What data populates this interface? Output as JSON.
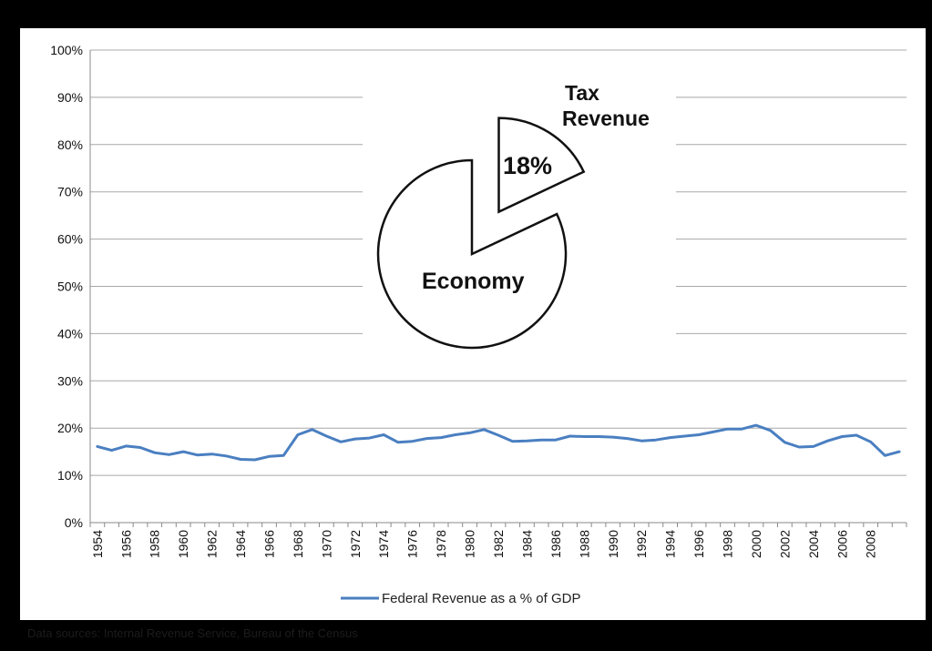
{
  "chart_data": {
    "type": "line",
    "categories": [
      "1954",
      "1955",
      "1956",
      "1957",
      "1958",
      "1959",
      "1960",
      "1961",
      "1962",
      "1963",
      "1964",
      "1965",
      "1966",
      "1967",
      "1968",
      "1969",
      "1970",
      "1971",
      "1972",
      "1973",
      "1974",
      "1975",
      "1976",
      "1977",
      "1978",
      "1979",
      "1980",
      "1981",
      "1982",
      "1983",
      "1984",
      "1985",
      "1986",
      "1987",
      "1988",
      "1989",
      "1990",
      "1991",
      "1992",
      "1993",
      "1994",
      "1995",
      "1996",
      "1997",
      "1998",
      "1999",
      "2000",
      "2001",
      "2002",
      "2003",
      "2004",
      "2005",
      "2006",
      "2007",
      "2008",
      "2009",
      "2010"
    ],
    "tick_labels": [
      "1954",
      "1956",
      "1958",
      "1960",
      "1962",
      "1964",
      "1966",
      "1968",
      "1970",
      "1972",
      "1974",
      "1976",
      "1978",
      "1980",
      "1982",
      "1984",
      "1986",
      "1988",
      "1990",
      "1992",
      "1994",
      "1996",
      "1998",
      "2000",
      "2002",
      "2004",
      "2006",
      "2008"
    ],
    "series": [
      {
        "name": "Federal Revenue as a % of GDP",
        "color": "#4a7fc1",
        "values": [
          16.1,
          15.3,
          16.2,
          15.9,
          14.8,
          14.4,
          15.0,
          14.3,
          14.5,
          14.1,
          13.4,
          13.3,
          14.0,
          14.2,
          18.6,
          19.7,
          18.3,
          17.1,
          17.7,
          17.9,
          18.6,
          17.0,
          17.2,
          17.8,
          18.0,
          18.6,
          19.0,
          19.7,
          18.5,
          17.2,
          17.3,
          17.5,
          17.5,
          18.3,
          18.2,
          18.2,
          18.1,
          17.8,
          17.3,
          17.5,
          18.0,
          18.3,
          18.6,
          19.2,
          19.8,
          19.8,
          20.6,
          19.5,
          17.0,
          16.0,
          16.1,
          17.3,
          18.2,
          18.5,
          17.1,
          14.2,
          15.0
        ]
      }
    ],
    "ylim": [
      0,
      100
    ],
    "yticks": [
      0,
      10,
      20,
      30,
      40,
      50,
      60,
      70,
      80,
      90,
      100
    ],
    "y_tick_format": "%",
    "grid": true,
    "legend_position": "bottom",
    "inset_pie": {
      "slices": [
        {
          "label": "Economy",
          "value": 82
        },
        {
          "label": "Tax Revenue",
          "value": 18,
          "display": "18%",
          "exploded": true
        }
      ]
    }
  },
  "inset_labels": {
    "tax_line1": "Tax",
    "tax_line2": "Revenue",
    "tax_value": "18%",
    "economy": "Economy"
  },
  "source": "Data sources: Internal Revenue Service, Bureau of the Census"
}
